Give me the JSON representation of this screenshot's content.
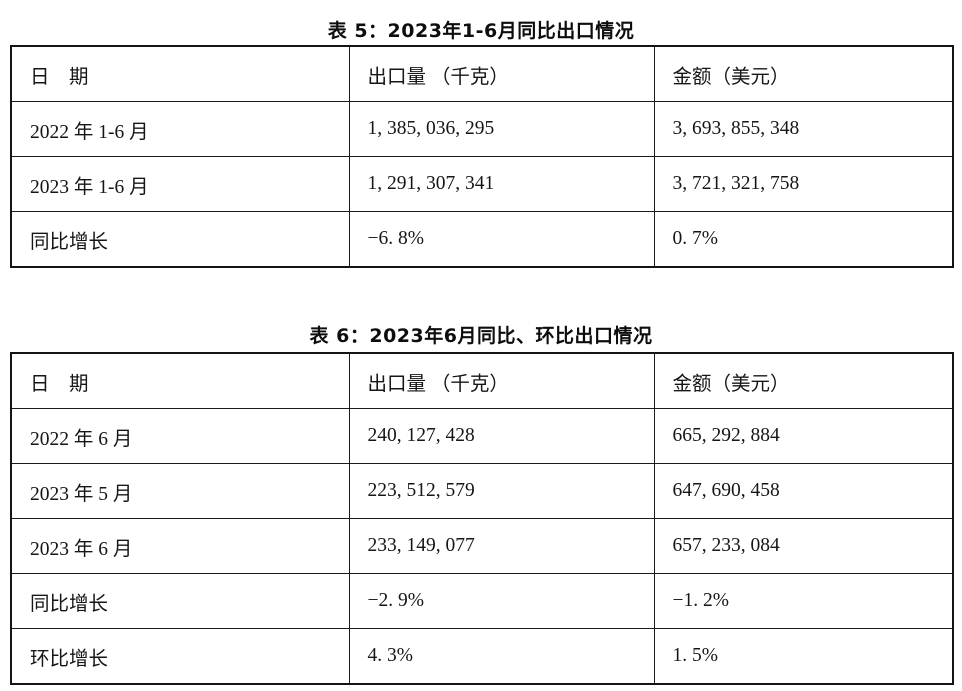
{
  "page": {
    "background_color": "#ffffff",
    "text_color": "#161616",
    "border_color": "#1a1a1a"
  },
  "tables": [
    {
      "title": "表 5：2023年1-6月同比出口情况",
      "headers": [
        "日　期",
        "出口量 （千克）",
        "金额（美元）"
      ],
      "rows": [
        [
          "2022 年 1-6 月",
          "1, 385, 036, 295",
          "3, 693, 855, 348"
        ],
        [
          "2023 年 1-6 月",
          "1, 291, 307, 341",
          "3, 721, 321, 758"
        ],
        [
          "同比增长",
          "−6. 8%",
          "0. 7%"
        ]
      ]
    },
    {
      "title": "表 6：2023年6月同比、环比出口情况",
      "headers": [
        "日　期",
        "出口量 （千克）",
        "金额（美元）"
      ],
      "rows": [
        [
          "2022 年 6 月",
          "240, 127, 428",
          "665, 292, 884"
        ],
        [
          "2023 年 5 月",
          "223, 512, 579",
          "647, 690, 458"
        ],
        [
          "2023 年 6 月",
          "233, 149, 077",
          "657, 233, 084"
        ],
        [
          "同比增长",
          "−2. 9%",
          "−1. 2%"
        ],
        [
          "环比增长",
          "4. 3%",
          "1. 5%"
        ]
      ]
    }
  ],
  "chart_data": [
    {
      "type": "table",
      "title": "表 5：2023年1-6月同比出口情况",
      "columns": [
        "日期",
        "出口量（千克）",
        "金额（美元）"
      ],
      "rows": [
        {
          "period": "2022年1-6月",
          "export_volume_kg": 1385036295,
          "amount_usd": 3693855348
        },
        {
          "period": "2023年1-6月",
          "export_volume_kg": 1291307341,
          "amount_usd": 3721321758
        },
        {
          "period": "同比增长",
          "export_volume_kg": "-6.8%",
          "amount_usd": "0.7%"
        }
      ]
    },
    {
      "type": "table",
      "title": "表 6：2023年6月同比、环比出口情况",
      "columns": [
        "日期",
        "出口量（千克）",
        "金额（美元）"
      ],
      "rows": [
        {
          "period": "2022年6月",
          "export_volume_kg": 240127428,
          "amount_usd": 665292884
        },
        {
          "period": "2023年5月",
          "export_volume_kg": 223512579,
          "amount_usd": 647690458
        },
        {
          "period": "2023年6月",
          "export_volume_kg": 233149077,
          "amount_usd": 657233084
        },
        {
          "period": "同比增长",
          "export_volume_kg": "-2.9%",
          "amount_usd": "-1.2%"
        },
        {
          "period": "环比增长",
          "export_volume_kg": "4.3%",
          "amount_usd": "1.5%"
        }
      ]
    }
  ]
}
